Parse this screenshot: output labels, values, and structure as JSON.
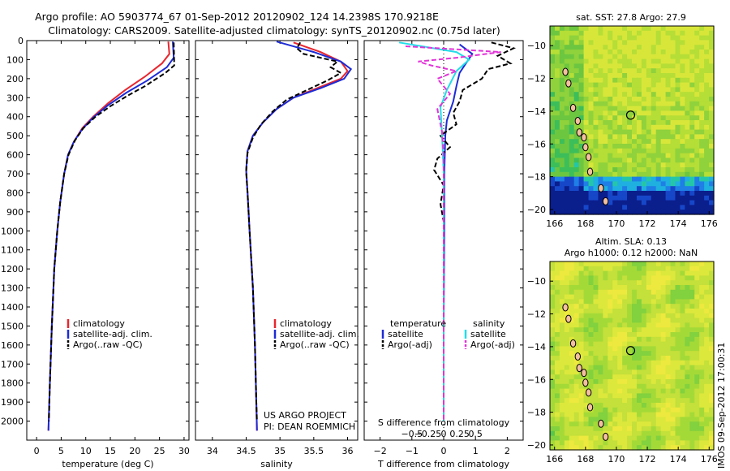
{
  "title_line1": "Argo profile: AO 5903774_67 01-Sep-2012 20120902_124 14.2398S 170.9218E",
  "title_line2": "Climatology: CARS2009. Satellite-adjusted climatology: synTS_20120902.nc (0.75d later)",
  "project_line1": "US ARGO PROJECT",
  "project_line2": "PI: DEAN ROEMMICH",
  "side_stamp": "IMOS 09-Sep-2012 17:00:31",
  "colors": {
    "climatology": "#e8262e",
    "satellite": "#1c2bd6",
    "argo": "#000000",
    "sal_satellite": "#22dde8",
    "sal_argo": "#e233d8"
  },
  "chart_data": [
    {
      "type": "line",
      "id": "temperature",
      "xlabel": "temperature (deg C)",
      "ylim": [
        2100,
        0
      ],
      "xlim": [
        -2,
        31
      ],
      "xticks": [
        0,
        5,
        10,
        15,
        20,
        25,
        30
      ],
      "yticks": [
        0,
        100,
        200,
        300,
        400,
        500,
        600,
        700,
        800,
        900,
        1000,
        1100,
        1200,
        1300,
        1400,
        1500,
        1600,
        1700,
        1800,
        1900,
        2000
      ],
      "legend": [
        "climatology",
        "satellite-adj. clim.",
        "Argo(..raw -QC)"
      ],
      "series": [
        {
          "name": "climatology",
          "style": "solid",
          "color": "#e8262e",
          "points": [
            [
              26.8,
              5
            ],
            [
              27,
              70
            ],
            [
              25.5,
              120
            ],
            [
              22,
              190
            ],
            [
              18,
              260
            ],
            [
              14.5,
              330
            ],
            [
              11.5,
              400
            ],
            [
              9.3,
              460
            ],
            [
              7.6,
              530
            ],
            [
              6.4,
              600
            ],
            [
              5.6,
              700
            ],
            [
              4.8,
              850
            ],
            [
              4.2,
              1000
            ],
            [
              3.6,
              1200
            ],
            [
              3.1,
              1500
            ],
            [
              2.7,
              1800
            ],
            [
              2.4,
              2050
            ]
          ]
        },
        {
          "name": "satellite-adj. clim.",
          "style": "solid",
          "color": "#1c2bd6",
          "points": [
            [
              27.7,
              5
            ],
            [
              27.9,
              90
            ],
            [
              26.5,
              140
            ],
            [
              22.5,
              210
            ],
            [
              18.2,
              275
            ],
            [
              14.5,
              340
            ],
            [
              11.5,
              405
            ],
            [
              9.3,
              465
            ],
            [
              7.6,
              530
            ],
            [
              6.4,
              600
            ],
            [
              5.6,
              700
            ],
            [
              4.8,
              850
            ],
            [
              4.2,
              1000
            ],
            [
              3.6,
              1200
            ],
            [
              3.1,
              1500
            ],
            [
              2.7,
              1800
            ],
            [
              2.4,
              2050
            ]
          ]
        },
        {
          "name": "Argo(..raw -QC)",
          "style": "dashed",
          "color": "#000000",
          "points": [
            [
              27.9,
              10
            ],
            [
              28,
              130
            ],
            [
              26.2,
              170
            ],
            [
              22,
              240
            ],
            [
              18.5,
              290
            ],
            [
              15,
              345
            ],
            [
              12,
              400
            ],
            [
              9.5,
              460
            ],
            [
              7.8,
              525
            ],
            [
              6.5,
              600
            ],
            [
              5.6,
              700
            ],
            [
              4.8,
              850
            ],
            [
              4.2,
              1000
            ],
            [
              3.6,
              1200
            ],
            [
              3.1,
              1500
            ],
            [
              2.7,
              1800
            ],
            [
              2.5,
              2000
            ]
          ]
        }
      ]
    },
    {
      "type": "line",
      "id": "salinity",
      "xlabel": "salinity",
      "ylim": [
        2100,
        0
      ],
      "xlim": [
        33.75,
        36.15
      ],
      "xticks": [
        34,
        34.5,
        35,
        35.5,
        36
      ],
      "xticklabels": [
        "34",
        "34.5",
        "35",
        "35.5",
        "36"
      ],
      "legend": [
        "climatology",
        "satellite-adj. clim.",
        "Argo(..raw -QC)"
      ],
      "series": [
        {
          "name": "climatology",
          "style": "solid",
          "color": "#e8262e",
          "points": [
            [
              35.2,
              10
            ],
            [
              35.6,
              60
            ],
            [
              35.9,
              110
            ],
            [
              36,
              160
            ],
            [
              35.9,
              200
            ],
            [
              35.55,
              250
            ],
            [
              35.2,
              300
            ],
            [
              34.95,
              360
            ],
            [
              34.75,
              430
            ],
            [
              34.6,
              500
            ],
            [
              34.52,
              580
            ],
            [
              34.5,
              680
            ],
            [
              34.52,
              800
            ],
            [
              34.55,
              1000
            ],
            [
              34.6,
              1300
            ],
            [
              34.63,
              1600
            ],
            [
              34.65,
              1900
            ],
            [
              34.66,
              2050
            ]
          ]
        },
        {
          "name": "satellite-adj. clim.",
          "style": "solid",
          "color": "#1c2bd6",
          "points": [
            [
              34.95,
              5
            ],
            [
              35.5,
              60
            ],
            [
              35.9,
              110
            ],
            [
              36.05,
              150
            ],
            [
              35.95,
              200
            ],
            [
              35.6,
              250
            ],
            [
              35.2,
              300
            ],
            [
              34.95,
              360
            ],
            [
              34.75,
              430
            ],
            [
              34.6,
              500
            ],
            [
              34.52,
              580
            ],
            [
              34.5,
              680
            ],
            [
              34.52,
              800
            ],
            [
              34.55,
              1000
            ],
            [
              34.6,
              1300
            ],
            [
              34.63,
              1600
            ],
            [
              34.65,
              1900
            ],
            [
              34.66,
              2050
            ]
          ]
        },
        {
          "name": "Argo(..raw -QC)",
          "style": "dashed",
          "color": "#000000",
          "points": [
            [
              35.3,
              10
            ],
            [
              35.25,
              40
            ],
            [
              35.35,
              70
            ],
            [
              35.85,
              110
            ],
            [
              35.75,
              140
            ],
            [
              35.9,
              170
            ],
            [
              35.7,
              210
            ],
            [
              35.4,
              260
            ],
            [
              35.1,
              310
            ],
            [
              34.9,
              370
            ],
            [
              34.72,
              440
            ],
            [
              34.6,
              510
            ],
            [
              34.52,
              590
            ],
            [
              34.5,
              690
            ],
            [
              34.52,
              800
            ],
            [
              34.55,
              1000
            ],
            [
              34.6,
              1300
            ],
            [
              34.63,
              1600
            ],
            [
              34.65,
              1900
            ],
            [
              34.66,
              2000
            ]
          ]
        }
      ]
    },
    {
      "type": "line",
      "id": "difference",
      "xlabel_bottom": "T difference from climatology",
      "xlabel_top": "S difference from climatology",
      "ylim": [
        2100,
        0
      ],
      "xlim": [
        -2.5,
        2.5
      ],
      "xticks": [
        -2,
        -1,
        0,
        1,
        2
      ],
      "xticklabels": [
        "−2",
        "−1",
        "0",
        "1",
        "2"
      ],
      "sticks": [
        -0.5,
        -0.25,
        0,
        0.25,
        0.5
      ],
      "sticklabels": [
        "−0.5",
        "−0.25",
        "0",
        "0.25",
        "0.5"
      ],
      "legend_temperature": {
        "header": "temperature",
        "items": [
          "satellite",
          "Argo(-adj)"
        ]
      },
      "legend_salinity": {
        "header": "salinity",
        "items": [
          "satellite",
          "Argo(-adj)"
        ]
      },
      "series": [
        {
          "name": "satellite",
          "group": "temperature",
          "style": "solid",
          "color": "#1c2bd6",
          "points": [
            [
              0.5,
              20
            ],
            [
              0.9,
              70
            ],
            [
              0.7,
              120
            ],
            [
              0.5,
              170
            ],
            [
              0.4,
              240
            ],
            [
              0.3,
              320
            ],
            [
              0.1,
              420
            ],
            [
              0.05,
              500
            ],
            [
              0.02,
              700
            ],
            [
              0.02,
              1000
            ],
            [
              0,
              1500
            ],
            [
              0,
              2000
            ]
          ]
        },
        {
          "name": "Argo(-adj)",
          "group": "temperature",
          "style": "dashed",
          "color": "#000000",
          "points": [
            [
              1.5,
              10
            ],
            [
              2.2,
              40
            ],
            [
              1.7,
              80
            ],
            [
              2.1,
              120
            ],
            [
              1.4,
              150
            ],
            [
              1.2,
              200
            ],
            [
              0.6,
              260
            ],
            [
              0.5,
              320
            ],
            [
              0.3,
              380
            ],
            [
              0.4,
              440
            ],
            [
              -0.1,
              500
            ],
            [
              0.2,
              560
            ],
            [
              -0.2,
              620
            ],
            [
              -0.3,
              680
            ],
            [
              0,
              760
            ],
            [
              -0.1,
              860
            ],
            [
              0,
              950
            ],
            [
              0,
              1100
            ],
            [
              0,
              1300
            ],
            [
              0,
              1500
            ],
            [
              0,
              1800
            ],
            [
              0,
              2000
            ]
          ]
        },
        {
          "name": "satellite",
          "group": "salinity",
          "style": "solid",
          "color": "#22dde8",
          "points": [
            [
              -1.4,
              10
            ],
            [
              0.4,
              60
            ],
            [
              0.8,
              100
            ],
            [
              0.4,
              160
            ],
            [
              0.1,
              260
            ],
            [
              -0.1,
              350
            ],
            [
              -0.05,
              500
            ],
            [
              0,
              700
            ],
            [
              0,
              1000
            ],
            [
              0,
              1500
            ],
            [
              0,
              2000
            ]
          ]
        },
        {
          "name": "Argo(-adj)",
          "group": "salinity",
          "style": "dashed",
          "color": "#e233d8",
          "points": [
            [
              -1.2,
              30
            ],
            [
              1.8,
              60
            ],
            [
              0.4,
              90
            ],
            [
              -0.8,
              110
            ],
            [
              -0.4,
              130
            ],
            [
              0.4,
              160
            ],
            [
              -0.2,
              200
            ],
            [
              0.2,
              280
            ],
            [
              -0.2,
              360
            ],
            [
              -0.05,
              480
            ],
            [
              0,
              600
            ],
            [
              0,
              800
            ],
            [
              0,
              1200
            ],
            [
              0,
              1600
            ],
            [
              0,
              2000
            ]
          ]
        }
      ]
    },
    {
      "type": "heatmap",
      "id": "sst_map",
      "title": "sat. SST: 27.8 Argo: 27.9",
      "xticks": [
        166,
        168,
        170,
        172,
        174,
        176
      ],
      "yticks": [
        -10,
        -12,
        -14,
        -16,
        -18,
        -20
      ],
      "xlim": [
        165.7,
        176.3
      ],
      "ylim": [
        -20.3,
        -8.8
      ],
      "marker": {
        "lon": 170.92,
        "lat": -14.24
      }
    },
    {
      "type": "heatmap",
      "id": "sla_map",
      "title_line1": "Altim. SLA: 0.13",
      "title_line2": "Argo h1000: 0.12 h2000: NaN",
      "xticks": [
        166,
        168,
        170,
        172,
        174,
        176
      ],
      "yticks": [
        -10,
        -12,
        -14,
        -16,
        -18,
        -20
      ],
      "xlim": [
        165.7,
        176.3
      ],
      "ylim": [
        -20.3,
        -8.8
      ],
      "marker": {
        "lon": 170.92,
        "lat": -14.24
      }
    }
  ]
}
